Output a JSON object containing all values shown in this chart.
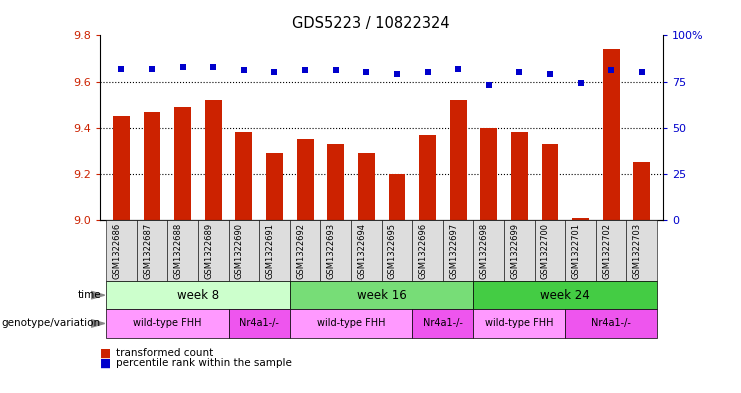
{
  "title": "GDS5223 / 10822324",
  "samples": [
    "GSM1322686",
    "GSM1322687",
    "GSM1322688",
    "GSM1322689",
    "GSM1322690",
    "GSM1322691",
    "GSM1322692",
    "GSM1322693",
    "GSM1322694",
    "GSM1322695",
    "GSM1322696",
    "GSM1322697",
    "GSM1322698",
    "GSM1322699",
    "GSM1322700",
    "GSM1322701",
    "GSM1322702",
    "GSM1322703"
  ],
  "red_values": [
    9.45,
    9.47,
    9.49,
    9.52,
    9.38,
    9.29,
    9.35,
    9.33,
    9.29,
    9.2,
    9.37,
    9.52,
    9.4,
    9.38,
    9.33,
    9.01,
    9.74,
    9.25
  ],
  "blue_values": [
    82,
    82,
    83,
    83,
    81,
    80,
    81,
    81,
    80,
    79,
    80,
    82,
    73,
    80,
    79,
    74,
    81,
    80
  ],
  "ylim_left": [
    9.0,
    9.8
  ],
  "ylim_right": [
    0,
    100
  ],
  "yticks_left": [
    9.0,
    9.2,
    9.4,
    9.6,
    9.8
  ],
  "yticks_right": [
    0,
    25,
    50,
    75,
    100
  ],
  "grid_values": [
    9.2,
    9.4,
    9.6
  ],
  "bar_color": "#cc2200",
  "dot_color": "#0000cc",
  "xtick_bg_color": "#dddddd",
  "time_groups": [
    {
      "label": "week 8",
      "start": 0,
      "end": 5,
      "color": "#ccffcc"
    },
    {
      "label": "week 16",
      "start": 6,
      "end": 11,
      "color": "#77dd77"
    },
    {
      "label": "week 24",
      "start": 12,
      "end": 17,
      "color": "#44cc44"
    }
  ],
  "geno_groups": [
    {
      "label": "wild-type FHH",
      "start": 0,
      "end": 3,
      "color": "#ff99ff"
    },
    {
      "label": "Nr4a1-/-",
      "start": 4,
      "end": 5,
      "color": "#ee55ee"
    },
    {
      "label": "wild-type FHH",
      "start": 6,
      "end": 9,
      "color": "#ff99ff"
    },
    {
      "label": "Nr4a1-/-",
      "start": 10,
      "end": 11,
      "color": "#ee55ee"
    },
    {
      "label": "wild-type FHH",
      "start": 12,
      "end": 14,
      "color": "#ff99ff"
    },
    {
      "label": "Nr4a1-/-",
      "start": 15,
      "end": 17,
      "color": "#ee55ee"
    }
  ],
  "bar_width": 0.55,
  "legend_items": [
    {
      "label": "transformed count",
      "color": "#cc2200"
    },
    {
      "label": "percentile rank within the sample",
      "color": "#0000cc"
    }
  ],
  "arrow_color": "#888888",
  "label_fontsize": 7.5,
  "row_label_fontsize": 7.5,
  "xtick_fontsize": 6.0,
  "ytick_fontsize": 8.0,
  "title_fontsize": 10.5,
  "time_label_fontsize": 8.5,
  "geno_label_fontsize": 7.0
}
